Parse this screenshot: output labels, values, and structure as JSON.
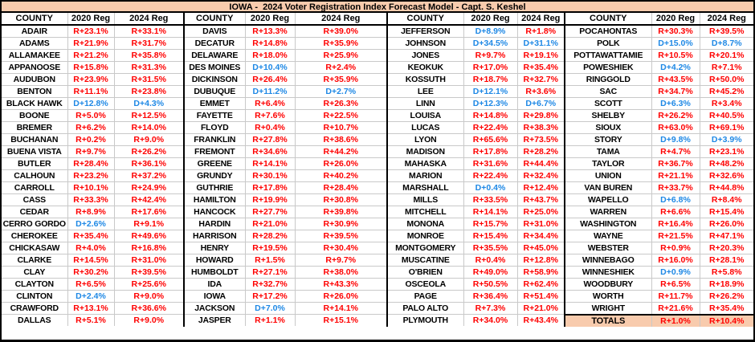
{
  "title": "IOWA -  2024 Voter Registration Index Forecast Model - Capt. S. Keshel",
  "colors": {
    "accent_bg": "#F8CBAD",
    "republican_red": "#FF0000",
    "democrat_blue": "#1E88E5",
    "gridline": "#C9C9C9",
    "border": "#000000"
  },
  "chart_data": {
    "type": "table",
    "title": "IOWA -  2024 Voter Registration Index Forecast Model - Capt. S. Keshel",
    "column_headers": [
      "COUNTY",
      "2020 Reg",
      "2024 Reg"
    ],
    "groups": [
      {
        "rows": [
          [
            "ADAIR",
            "R+23.1%",
            "R+33.1%"
          ],
          [
            "ADAMS",
            "R+21.9%",
            "R+31.7%"
          ],
          [
            "ALLAMAKEE",
            "R+21.2%",
            "R+35.8%"
          ],
          [
            "APPANOOSE",
            "R+15.8%",
            "R+31.3%"
          ],
          [
            "AUDUBON",
            "R+23.9%",
            "R+31.5%"
          ],
          [
            "BENTON",
            "R+11.1%",
            "R+23.8%"
          ],
          [
            "BLACK HAWK",
            "D+12.8%",
            "D+4.3%"
          ],
          [
            "BOONE",
            "R+5.0%",
            "R+12.5%"
          ],
          [
            "BREMER",
            "R+6.2%",
            "R+14.0%"
          ],
          [
            "BUCHANAN",
            "R+0.2%",
            "R+9.0%"
          ],
          [
            "BUENA VISTA",
            "R+9.7%",
            "R+26.2%"
          ],
          [
            "BUTLER",
            "R+28.4%",
            "R+36.1%"
          ],
          [
            "CALHOUN",
            "R+23.2%",
            "R+37.2%"
          ],
          [
            "CARROLL",
            "R+10.1%",
            "R+24.9%"
          ],
          [
            "CASS",
            "R+33.3%",
            "R+42.4%"
          ],
          [
            "CEDAR",
            "R+8.9%",
            "R+17.6%"
          ],
          [
            "CERRO GORDO",
            "D+2.6%",
            "R+9.1%"
          ],
          [
            "CHEROKEE",
            "R+35.4%",
            "R+49.6%"
          ],
          [
            "CHICKASAW",
            "R+4.0%",
            "R+16.8%"
          ],
          [
            "CLARKE",
            "R+14.5%",
            "R+31.0%"
          ],
          [
            "CLAY",
            "R+30.2%",
            "R+39.5%"
          ],
          [
            "CLAYTON",
            "R+6.5%",
            "R+25.6%"
          ],
          [
            "CLINTON",
            "D+2.4%",
            "R+9.0%"
          ],
          [
            "CRAWFORD",
            "R+13.1%",
            "R+36.6%"
          ],
          [
            "DALLAS",
            "R+5.1%",
            "R+9.0%"
          ]
        ]
      },
      {
        "rows": [
          [
            "DAVIS",
            "R+13.3%",
            "R+39.0%"
          ],
          [
            "DECATUR",
            "R+14.8%",
            "R+35.9%"
          ],
          [
            "DELAWARE",
            "R+18.0%",
            "R+25.9%"
          ],
          [
            "DES MOINES",
            "D+10.4%",
            "R+2.4%"
          ],
          [
            "DICKINSON",
            "R+26.4%",
            "R+35.9%"
          ],
          [
            "DUBUQUE",
            "D+11.2%",
            "D+2.7%"
          ],
          [
            "EMMET",
            "R+6.4%",
            "R+26.3%"
          ],
          [
            "FAYETTE",
            "R+7.6%",
            "R+22.5%"
          ],
          [
            "FLOYD",
            "R+0.4%",
            "R+10.7%"
          ],
          [
            "FRANKLIN",
            "R+27.8%",
            "R+38.6%"
          ],
          [
            "FREMONT",
            "R+34.6%",
            "R+44.2%"
          ],
          [
            "GREENE",
            "R+14.1%",
            "R+26.0%"
          ],
          [
            "GRUNDY",
            "R+30.1%",
            "R+40.2%"
          ],
          [
            "GUTHRIE",
            "R+17.8%",
            "R+28.4%"
          ],
          [
            "HAMILTON",
            "R+19.9%",
            "R+30.8%"
          ],
          [
            "HANCOCK",
            "R+27.7%",
            "R+39.8%"
          ],
          [
            "HARDIN",
            "R+21.0%",
            "R+30.9%"
          ],
          [
            "HARRISON",
            "R+28.2%",
            "R+39.5%"
          ],
          [
            "HENRY",
            "R+19.5%",
            "R+30.4%"
          ],
          [
            "HOWARD",
            "R+1.5%",
            "R+9.7%"
          ],
          [
            "HUMBOLDT",
            "R+27.1%",
            "R+38.0%"
          ],
          [
            "IDA",
            "R+32.7%",
            "R+43.3%"
          ],
          [
            "IOWA",
            "R+17.2%",
            "R+26.0%"
          ],
          [
            "JACKSON",
            "D+7.0%",
            "R+14.1%"
          ],
          [
            "JASPER",
            "R+1.1%",
            "R+15.1%"
          ]
        ]
      },
      {
        "rows": [
          [
            "JEFFERSON",
            "D+8.9%",
            "R+1.8%"
          ],
          [
            "JOHNSON",
            "D+34.5%",
            "D+31.1%"
          ],
          [
            "JONES",
            "R+9.7%",
            "R+19.1%"
          ],
          [
            "KEOKUK",
            "R+17.0%",
            "R+35.4%"
          ],
          [
            "KOSSUTH",
            "R+18.7%",
            "R+32.7%"
          ],
          [
            "LEE",
            "D+12.1%",
            "R+3.6%"
          ],
          [
            "LINN",
            "D+12.3%",
            "D+6.7%"
          ],
          [
            "LOUISA",
            "R+14.8%",
            "R+29.8%"
          ],
          [
            "LUCAS",
            "R+22.4%",
            "R+38.3%"
          ],
          [
            "LYON",
            "R+65.6%",
            "R+73.5%"
          ],
          [
            "MADISON",
            "R+17.8%",
            "R+28.2%"
          ],
          [
            "MAHASKA",
            "R+31.6%",
            "R+44.4%"
          ],
          [
            "MARION",
            "R+22.4%",
            "R+32.4%"
          ],
          [
            "MARSHALL",
            "D+0.4%",
            "R+12.4%"
          ],
          [
            "MILLS",
            "R+33.5%",
            "R+43.7%"
          ],
          [
            "MITCHELL",
            "R+14.1%",
            "R+25.0%"
          ],
          [
            "MONONA",
            "R+15.7%",
            "R+31.0%"
          ],
          [
            "MONROE",
            "R+15.4%",
            "R+34.4%"
          ],
          [
            "MONTGOMERY",
            "R+35.5%",
            "R+45.0%"
          ],
          [
            "MUSCATINE",
            "R+0.4%",
            "R+12.8%"
          ],
          [
            "O'BRIEN",
            "R+49.0%",
            "R+58.9%"
          ],
          [
            "OSCEOLA",
            "R+50.5%",
            "R+62.4%"
          ],
          [
            "PAGE",
            "R+36.4%",
            "R+51.4%"
          ],
          [
            "PALO ALTO",
            "R+7.3%",
            "R+21.0%"
          ],
          [
            "PLYMOUTH",
            "R+34.0%",
            "R+43.4%"
          ]
        ]
      },
      {
        "rows": [
          [
            "POCAHONTAS",
            "R+30.3%",
            "R+39.5%"
          ],
          [
            "POLK",
            "D+15.0%",
            "D+8.7%"
          ],
          [
            "POTTAWATTAMIE",
            "R+10.5%",
            "R+20.1%"
          ],
          [
            "POWESHIEK",
            "D+4.2%",
            "R+7.1%"
          ],
          [
            "RINGGOLD",
            "R+43.5%",
            "R+50.0%"
          ],
          [
            "SAC",
            "R+34.7%",
            "R+45.2%"
          ],
          [
            "SCOTT",
            "D+6.3%",
            "R+3.4%"
          ],
          [
            "SHELBY",
            "R+26.2%",
            "R+40.5%"
          ],
          [
            "SIOUX",
            "R+63.0%",
            "R+69.1%"
          ],
          [
            "STORY",
            "D+9.8%",
            "D+3.9%"
          ],
          [
            "TAMA",
            "R+4.7%",
            "R+23.1%"
          ],
          [
            "TAYLOR",
            "R+36.7%",
            "R+48.2%"
          ],
          [
            "UNION",
            "R+21.1%",
            "R+32.6%"
          ],
          [
            "VAN BUREN",
            "R+33.7%",
            "R+44.8%"
          ],
          [
            "WAPELLO",
            "D+6.8%",
            "R+8.4%"
          ],
          [
            "WARREN",
            "R+6.6%",
            "R+15.4%"
          ],
          [
            "WASHINGTON",
            "R+16.4%",
            "R+26.0%"
          ],
          [
            "WAYNE",
            "R+21.5%",
            "R+47.1%"
          ],
          [
            "WEBSTER",
            "R+0.9%",
            "R+20.3%"
          ],
          [
            "WINNEBAGO",
            "R+16.0%",
            "R+28.1%"
          ],
          [
            "WINNESHIEK",
            "D+0.9%",
            "R+5.8%"
          ],
          [
            "WOODBURY",
            "R+6.5%",
            "R+18.9%"
          ],
          [
            "WORTH",
            "R+11.7%",
            "R+26.2%"
          ],
          [
            "WRIGHT",
            "R+21.6%",
            "R+35.4%"
          ]
        ]
      }
    ],
    "totals": {
      "label": "TOTALS",
      "reg_2020": "R+1.0%",
      "reg_2024": "R+10.4%"
    }
  }
}
